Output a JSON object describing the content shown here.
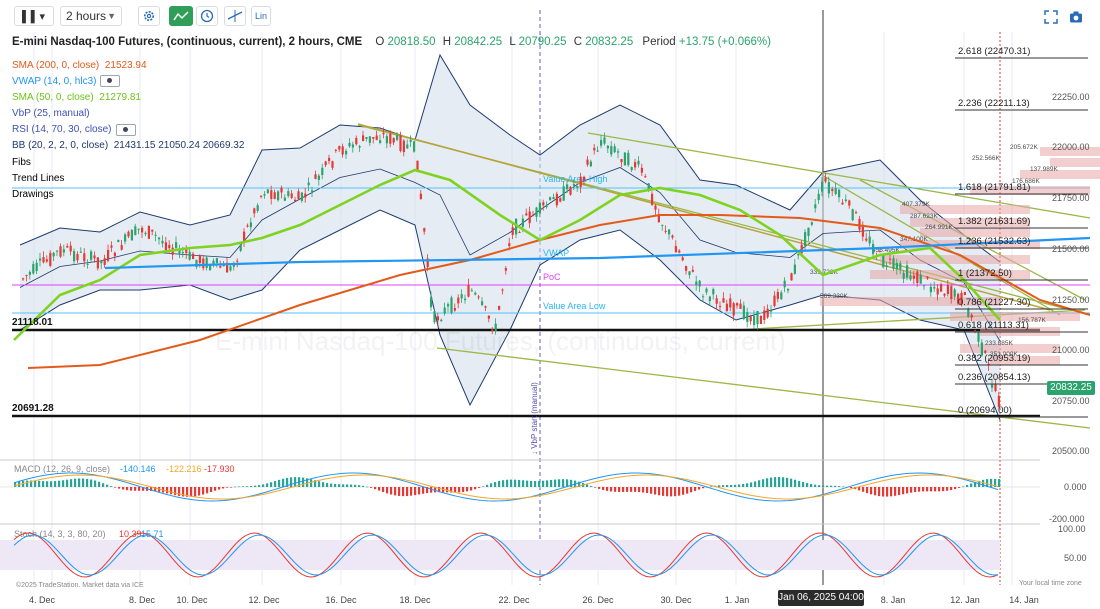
{
  "toolbar": {
    "chart_type_icon": "bars-icon",
    "interval": "2 hours",
    "settings_icon": "gear-icon",
    "line_tool_icon": "trend-line-icon",
    "clock_icon": "clock-icon",
    "crosshair_icon": "crosshair-icon",
    "scale_label": "Lin",
    "fullscreen_icon": "fullscreen-icon",
    "camera_icon": "camera-icon"
  },
  "header": {
    "symbol": "E-mini Nasdaq-100 Futures, (continuous, current), 2 hours, CME",
    "o_label": "O",
    "o_value": "20818.50",
    "h_label": "H",
    "h_value": "20842.25",
    "l_label": "L",
    "l_value": "20790.25",
    "c_label": "C",
    "c_value": "20832.25",
    "period_label": "Period",
    "period_value": "+13.75 (+0.066%)"
  },
  "legend": [
    {
      "label": "SMA (200, 0, close)",
      "value": "21523.94",
      "color": "#e35a1a"
    },
    {
      "label": "VWAP (14, 0, hlc3)",
      "value": "",
      "color": "#2196f3"
    },
    {
      "label": "SMA (50, 0, close)",
      "value": "21279.81",
      "color": "#7ed321"
    },
    {
      "label": "VbP (25, manual)",
      "value": "",
      "color": "#3f51b5"
    },
    {
      "label": "RSI (14, 70, 30, close)",
      "value": "",
      "color": "#3f51b5"
    },
    {
      "label": "BB (20, 2, 2, 0, close)",
      "value": "21431.15  21050.24  20669.32",
      "color": "#1e3a6e"
    },
    {
      "label": "Fibs",
      "value": "",
      "color": "#222222"
    },
    {
      "label": "Trend Lines",
      "value": "",
      "color": "#222222"
    },
    {
      "label": "Drawings",
      "value": "",
      "color": "#222222"
    }
  ],
  "levels": {
    "upper_line_label": "21118.01",
    "lower_line_label": "20691.28",
    "value_area_high": "Value Area High",
    "value_area_low": "Value Area Low",
    "vwap_label": "VWAP",
    "poc_label": "PoC",
    "vbp_start": "↓ VbP start (manual)",
    "watermark": "E-mini Nasdaq-100 Futures, (continuous, current)"
  },
  "fibs": [
    {
      "label": "2.618 (22470.31)"
    },
    {
      "label": "2.236 (22211.13)"
    },
    {
      "label": "1.618 (21791.81)"
    },
    {
      "label": "1.382 (21631.69)"
    },
    {
      "label": "1.236 (21532.63)"
    },
    {
      "label": "1 (21372.50)"
    },
    {
      "label": "0.786 (21227.30)"
    },
    {
      "label": "0.618 (21113.31)"
    },
    {
      "label": "0.382 (20953.19)"
    },
    {
      "label": "0.236 (20854.13)"
    },
    {
      "label": "0 (20694.00)"
    }
  ],
  "vbp_volumes": [
    "205.672K",
    "252.566K",
    "137.989K",
    "176.686K",
    "407.379K",
    "287.623K",
    "264.991K",
    "347.100K",
    "456.495K",
    "339.722K",
    "569.330K",
    "156.787K",
    "233.885K",
    "351.000K"
  ],
  "price_axis": {
    "ticks": [
      "22250.00",
      "22000.00",
      "21750.00",
      "21500.00",
      "21250.00",
      "21000.00",
      "20750.00",
      "20500.00"
    ],
    "current_price": "20832.25"
  },
  "macd": {
    "label": "MACD (12, 26, 9, close)",
    "v1": "-140.146",
    "v2": "-122.216",
    "v3": "-17.930",
    "ticks": [
      "0.000",
      "-200.000"
    ]
  },
  "stoch": {
    "label": "Stoch (14, 3, 3, 80, 20)",
    "v1": "10.39",
    "v2": "15.71",
    "ticks": [
      "100.00",
      "50.00"
    ]
  },
  "time_axis": {
    "labels": [
      "4. Dec",
      "8. Dec",
      "10. Dec",
      "12. Dec",
      "16. Dec",
      "18. Dec",
      "22. Dec",
      "26. Dec",
      "30. Dec",
      "1. Jan",
      "8. Jan",
      "12. Jan",
      "14. Jan"
    ],
    "crosshair_time": "Jan 06, 2025 04:00"
  },
  "footer": {
    "copyright": "©2025 TradeStation. Market data via ICE",
    "local_time": "Your local time zone"
  },
  "colors": {
    "sma200": "#e35a1a",
    "vwap": "#2196f3",
    "sma50": "#7ed321",
    "bb": "#1e3a6e",
    "up": "#2ba36d",
    "down": "#e53935",
    "fib": "#222222",
    "trend": "#8db33a"
  }
}
